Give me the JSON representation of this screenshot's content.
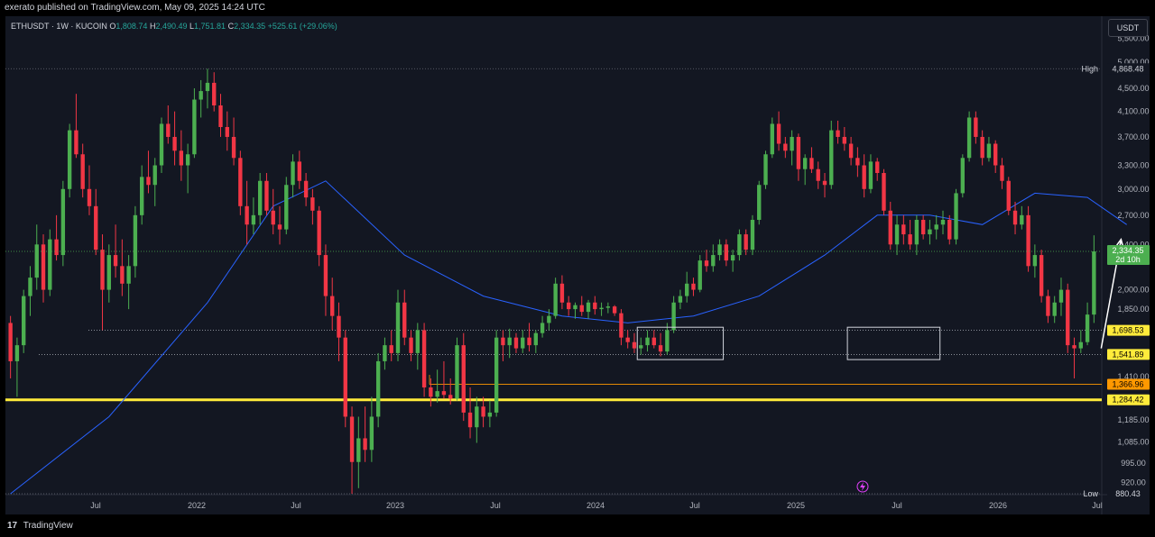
{
  "header": {
    "publisher": "exerato published on TradingView.com, May 09, 2025 14:24 UTC"
  },
  "legend": {
    "symbol": "ETHUSDT · 1W · KUCOIN",
    "open_label": "O",
    "open": "1,808.74",
    "high_label": "H",
    "high": "2,490.49",
    "low_label": "L",
    "low": "1,751.81",
    "close_label": "C",
    "close": "2,334.35",
    "change": "+525.61 (+29.06%)"
  },
  "currency_button": "USDT",
  "footer": {
    "brand": "TradingView",
    "logo": "17"
  },
  "colors": {
    "background": "#131722",
    "up": "#4caf50",
    "down": "#f23645",
    "ma": "#2962ff",
    "support_major": "#ffeb3b",
    "support_minor": "#ff9800"
  },
  "chart_data": {
    "type": "candlestick",
    "ylim": [
      880,
      5800
    ],
    "y_scale": "log",
    "x_ticks": [
      "Jul",
      "2022",
      "Jul",
      "2023",
      "Jul",
      "2024",
      "Jul",
      "2025",
      "Jul",
      "2026",
      "Jul"
    ],
    "y_ticks": [
      "5,500.00",
      "5,000.00",
      "4,500.00",
      "4,100.00",
      "3,700.00",
      "3,300.00",
      "3,000.00",
      "2,700.00",
      "2,400.00",
      "2,000.00",
      "1,850.00",
      "1,410.00",
      "1,185.00",
      "1,085.00",
      "995.00",
      "920.00"
    ],
    "high_marker": {
      "label": "High",
      "value": "4,868.48"
    },
    "low_marker": {
      "label": "Low",
      "value": "880.43"
    },
    "last_price": {
      "value": "2,334.35",
      "countdown": "2d 10h"
    },
    "levels": [
      {
        "value": "1,698.53",
        "kind": "support_minor"
      },
      {
        "value": "1,541.89",
        "kind": "support_minor"
      },
      {
        "value": "1,366.96",
        "kind": "support_orange"
      },
      {
        "value": "1,284.42",
        "kind": "support_major"
      }
    ],
    "ohlc": [
      [
        1750,
        1800,
        1400,
        1500
      ],
      [
        1500,
        1650,
        1300,
        1600
      ],
      [
        1600,
        2000,
        1550,
        1950
      ],
      [
        1950,
        2200,
        1800,
        2100
      ],
      [
        2100,
        2600,
        2000,
        2400
      ],
      [
        2400,
        2500,
        1900,
        2000
      ],
      [
        2000,
        2550,
        1950,
        2450
      ],
      [
        2450,
        2700,
        2250,
        2300
      ],
      [
        2300,
        3100,
        2200,
        3000
      ],
      [
        3000,
        3900,
        2900,
        3800
      ],
      [
        3800,
        4400,
        3400,
        3450
      ],
      [
        3450,
        3600,
        2900,
        3000
      ],
      [
        3000,
        3300,
        2700,
        2800
      ],
      [
        2800,
        3000,
        2300,
        2350
      ],
      [
        2350,
        2500,
        1700,
        2000
      ],
      [
        2000,
        2400,
        1900,
        2300
      ],
      [
        2300,
        2600,
        2100,
        2200
      ],
      [
        2200,
        2450,
        1950,
        2050
      ],
      [
        2050,
        2300,
        1850,
        2200
      ],
      [
        2200,
        2800,
        2100,
        2700
      ],
      [
        2700,
        3300,
        2600,
        3150
      ],
      [
        3150,
        3500,
        2950,
        3050
      ],
      [
        3050,
        3400,
        2800,
        3300
      ],
      [
        3300,
        4000,
        3200,
        3900
      ],
      [
        3900,
        4200,
        3600,
        3700
      ],
      [
        3700,
        4100,
        3300,
        3500
      ],
      [
        3500,
        3800,
        3100,
        3300
      ],
      [
        3300,
        3600,
        2950,
        3450
      ],
      [
        3450,
        4500,
        3400,
        4300
      ],
      [
        4300,
        4650,
        4000,
        4450
      ],
      [
        4450,
        4868,
        4150,
        4600
      ],
      [
        4600,
        4800,
        4100,
        4200
      ],
      [
        4200,
        4400,
        3700,
        3850
      ],
      [
        3850,
        4100,
        3500,
        3700
      ],
      [
        3700,
        4000,
        3300,
        3400
      ],
      [
        3400,
        3500,
        2700,
        2800
      ],
      [
        2800,
        3100,
        2400,
        2600
      ],
      [
        2600,
        2900,
        2500,
        2700
      ],
      [
        2700,
        3200,
        2600,
        3100
      ],
      [
        3100,
        3200,
        2700,
        2750
      ],
      [
        2750,
        3000,
        2500,
        2600
      ],
      [
        2600,
        2800,
        2400,
        2550
      ],
      [
        2550,
        3150,
        2500,
        3050
      ],
      [
        3050,
        3450,
        2900,
        3350
      ],
      [
        3350,
        3500,
        3000,
        3100
      ],
      [
        3100,
        3200,
        2800,
        2900
      ],
      [
        2900,
        3000,
        2600,
        2750
      ],
      [
        2750,
        2800,
        2200,
        2300
      ],
      [
        2300,
        2400,
        1800,
        1950
      ],
      [
        1950,
        2100,
        1700,
        1800
      ],
      [
        1800,
        1900,
        1500,
        1650
      ],
      [
        1650,
        1700,
        1150,
        1200
      ],
      [
        1200,
        1250,
        880,
        1000
      ],
      [
        1000,
        1200,
        900,
        1100
      ],
      [
        1100,
        1250,
        1000,
        1050
      ],
      [
        1050,
        1300,
        1000,
        1200
      ],
      [
        1200,
        1550,
        1150,
        1500
      ],
      [
        1500,
        1650,
        1450,
        1600
      ],
      [
        1600,
        1700,
        1500,
        1550
      ],
      [
        1550,
        2000,
        1500,
        1900
      ],
      [
        1900,
        2000,
        1600,
        1650
      ],
      [
        1650,
        1700,
        1500,
        1550
      ],
      [
        1550,
        1750,
        1450,
        1700
      ],
      [
        1700,
        1750,
        1300,
        1350
      ],
      [
        1350,
        1400,
        1250,
        1300
      ],
      [
        1300,
        1450,
        1270,
        1330
      ],
      [
        1330,
        1500,
        1290,
        1310
      ],
      [
        1310,
        1400,
        1260,
        1290
      ],
      [
        1290,
        1650,
        1280,
        1600
      ],
      [
        1600,
        1680,
        1180,
        1220
      ],
      [
        1220,
        1350,
        1100,
        1150
      ],
      [
        1150,
        1300,
        1080,
        1250
      ],
      [
        1250,
        1300,
        1150,
        1200
      ],
      [
        1200,
        1280,
        1150,
        1220
      ],
      [
        1220,
        1700,
        1200,
        1650
      ],
      [
        1650,
        1700,
        1500,
        1600
      ],
      [
        1600,
        1710,
        1520,
        1650
      ],
      [
        1650,
        1680,
        1550,
        1580
      ],
      [
        1580,
        1700,
        1550,
        1650
      ],
      [
        1650,
        1750,
        1560,
        1600
      ],
      [
        1600,
        1700,
        1550,
        1680
      ],
      [
        1680,
        1800,
        1650,
        1750
      ],
      [
        1750,
        1850,
        1700,
        1800
      ],
      [
        1800,
        2100,
        1780,
        2050
      ],
      [
        2050,
        2120,
        1850,
        1900
      ],
      [
        1900,
        1950,
        1800,
        1850
      ],
      [
        1850,
        1900,
        1780,
        1880
      ],
      [
        1880,
        1950,
        1800,
        1830
      ],
      [
        1830,
        1920,
        1780,
        1900
      ],
      [
        1900,
        1950,
        1810,
        1850
      ],
      [
        1850,
        1900,
        1800,
        1860
      ],
      [
        1860,
        1900,
        1820,
        1870
      ],
      [
        1870,
        1880,
        1800,
        1820
      ],
      [
        1820,
        1850,
        1600,
        1650
      ],
      [
        1650,
        1700,
        1580,
        1620
      ],
      [
        1620,
        1680,
        1550,
        1580
      ],
      [
        1580,
        1650,
        1540,
        1600
      ],
      [
        1600,
        1700,
        1560,
        1650
      ],
      [
        1650,
        1700,
        1580,
        1600
      ],
      [
        1600,
        1680,
        1530,
        1560
      ],
      [
        1560,
        1750,
        1540,
        1700
      ],
      [
        1700,
        1950,
        1680,
        1900
      ],
      [
        1900,
        2000,
        1850,
        1950
      ],
      [
        1950,
        2150,
        1900,
        2050
      ],
      [
        2050,
        2100,
        1950,
        2000
      ],
      [
        2000,
        2300,
        1980,
        2250
      ],
      [
        2250,
        2350,
        2150,
        2200
      ],
      [
        2200,
        2400,
        2150,
        2300
      ],
      [
        2300,
        2450,
        2250,
        2400
      ],
      [
        2400,
        2450,
        2200,
        2250
      ],
      [
        2250,
        2350,
        2150,
        2300
      ],
      [
        2300,
        2550,
        2250,
        2500
      ],
      [
        2500,
        2550,
        2300,
        2350
      ],
      [
        2350,
        2700,
        2300,
        2650
      ],
      [
        2650,
        3100,
        2600,
        3050
      ],
      [
        3050,
        3500,
        3000,
        3450
      ],
      [
        3450,
        4000,
        3400,
        3900
      ],
      [
        3900,
        4100,
        3500,
        3600
      ],
      [
        3600,
        3700,
        3400,
        3500
      ],
      [
        3500,
        3800,
        3300,
        3700
      ],
      [
        3700,
        3750,
        3100,
        3250
      ],
      [
        3250,
        3450,
        3050,
        3400
      ],
      [
        3400,
        3550,
        3200,
        3250
      ],
      [
        3250,
        3350,
        3000,
        3100
      ],
      [
        3100,
        3200,
        2900,
        3050
      ],
      [
        3050,
        3950,
        3000,
        3800
      ],
      [
        3800,
        3950,
        3600,
        3700
      ],
      [
        3700,
        3850,
        3500,
        3600
      ],
      [
        3600,
        3700,
        3300,
        3400
      ],
      [
        3400,
        3550,
        3150,
        3300
      ],
      [
        3300,
        3450,
        2900,
        3000
      ],
      [
        3000,
        3450,
        2950,
        3350
      ],
      [
        3350,
        3400,
        3100,
        3200
      ],
      [
        3200,
        3250,
        2700,
        2750
      ],
      [
        2750,
        2850,
        2350,
        2400
      ],
      [
        2400,
        2700,
        2300,
        2600
      ],
      [
        2600,
        2700,
        2400,
        2500
      ],
      [
        2500,
        2650,
        2350,
        2400
      ],
      [
        2400,
        2700,
        2300,
        2650
      ],
      [
        2650,
        2700,
        2450,
        2500
      ],
      [
        2500,
        2650,
        2400,
        2550
      ],
      [
        2550,
        2700,
        2450,
        2600
      ],
      [
        2600,
        2750,
        2500,
        2650
      ],
      [
        2650,
        2700,
        2400,
        2450
      ],
      [
        2450,
        3000,
        2400,
        2950
      ],
      [
        2950,
        3450,
        2900,
        3400
      ],
      [
        3400,
        4100,
        3350,
        4000
      ],
      [
        4000,
        4100,
        3600,
        3700
      ],
      [
        3700,
        3800,
        3300,
        3400
      ],
      [
        3400,
        3700,
        3350,
        3600
      ],
      [
        3600,
        3650,
        3200,
        3300
      ],
      [
        3300,
        3400,
        3000,
        3100
      ],
      [
        3100,
        3150,
        2700,
        2750
      ],
      [
        2750,
        2850,
        2500,
        2600
      ],
      [
        2600,
        2800,
        2550,
        2700
      ],
      [
        2700,
        2800,
        2150,
        2200
      ],
      [
        2200,
        2400,
        2100,
        2300
      ],
      [
        2300,
        2350,
        1900,
        1950
      ],
      [
        1950,
        2000,
        1750,
        1800
      ],
      [
        1800,
        1950,
        1750,
        1900
      ],
      [
        1900,
        2100,
        1800,
        2000
      ],
      [
        2000,
        2050,
        1550,
        1600
      ],
      [
        1600,
        1650,
        1400,
        1580
      ],
      [
        1580,
        1700,
        1550,
        1620
      ],
      [
        1620,
        1900,
        1600,
        1810
      ],
      [
        1810,
        2490,
        1750,
        2334
      ]
    ],
    "ma": [
      [
        0,
        880
      ],
      [
        15,
        1200
      ],
      [
        30,
        1900
      ],
      [
        40,
        2800
      ],
      [
        48,
        3100
      ],
      [
        60,
        2300
      ],
      [
        72,
        1950
      ],
      [
        84,
        1800
      ],
      [
        94,
        1750
      ],
      [
        104,
        1800
      ],
      [
        114,
        1950
      ],
      [
        124,
        2300
      ],
      [
        132,
        2700
      ],
      [
        140,
        2700
      ],
      [
        148,
        2600
      ],
      [
        156,
        2950
      ],
      [
        164,
        2900
      ],
      [
        170,
        2600
      ]
    ]
  }
}
